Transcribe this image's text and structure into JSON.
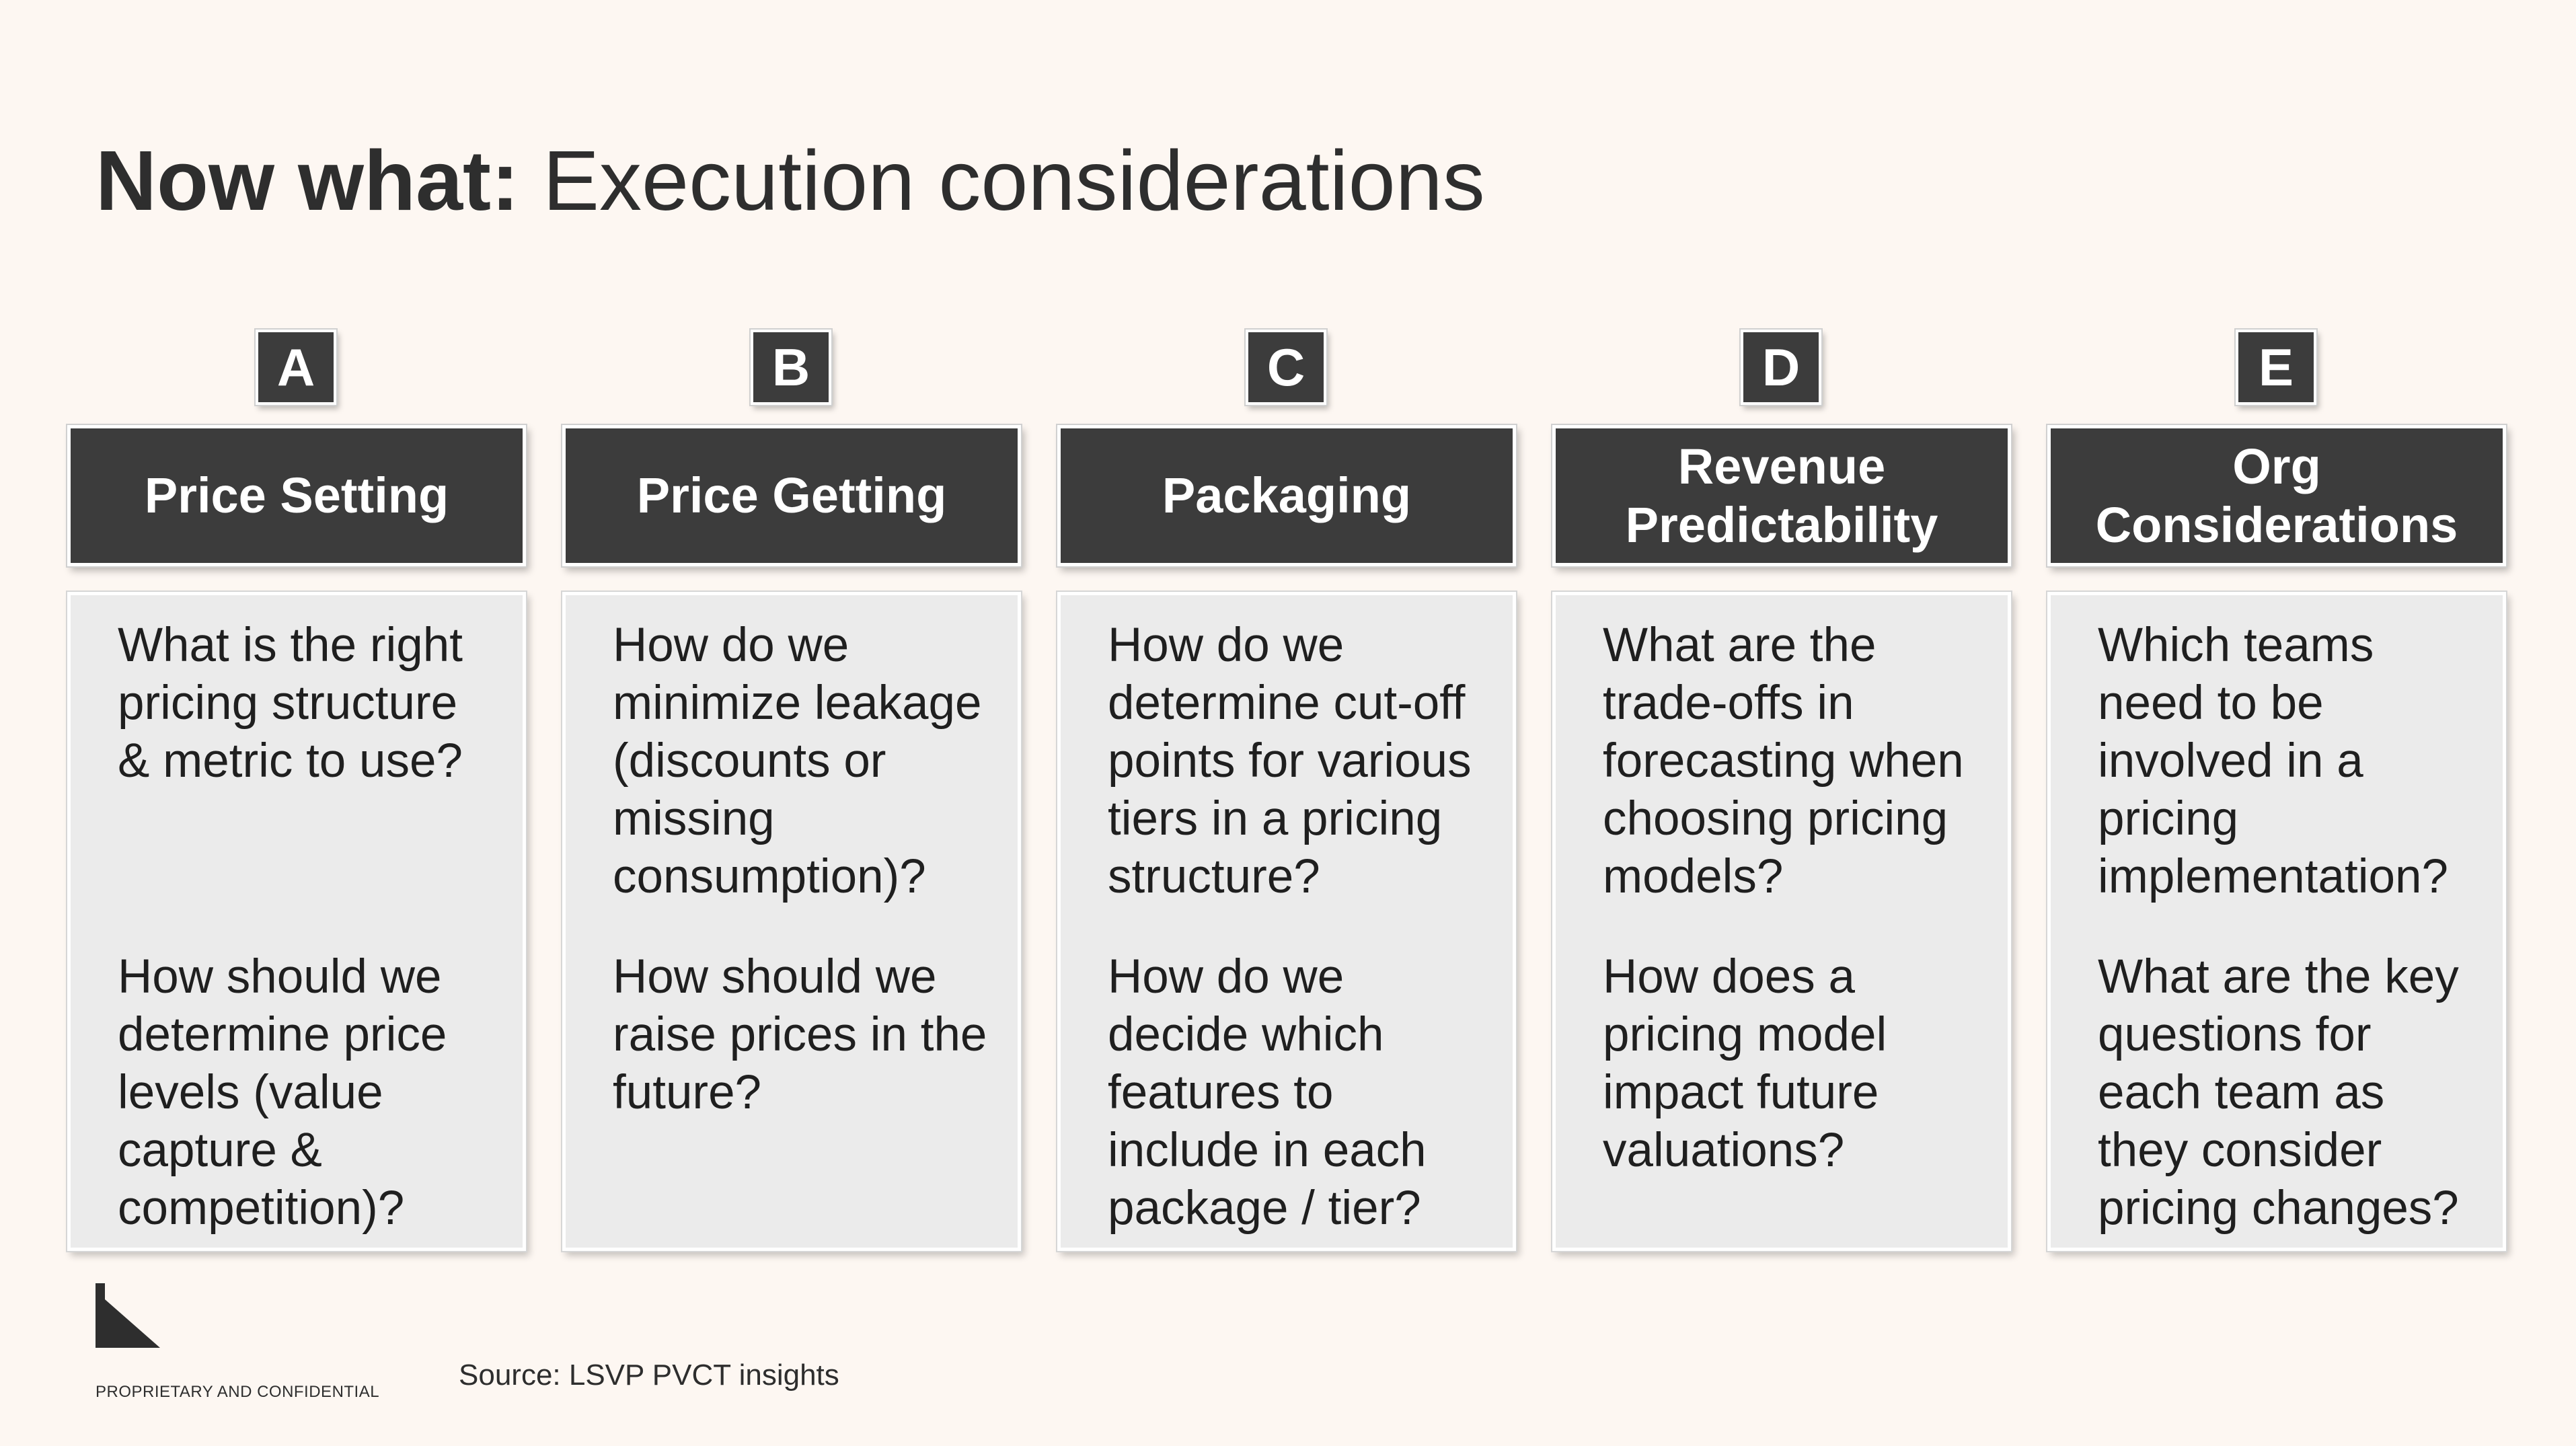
{
  "title": {
    "bold_part": "Now what:",
    "regular_part": "Execution considerations"
  },
  "columns": [
    {
      "letter": "A",
      "header": "Price Setting",
      "questions": [
        "What is the right pricing structure & metric to use?",
        "How should we determine price levels (value capture & competition)?"
      ]
    },
    {
      "letter": "B",
      "header": "Price Getting",
      "questions": [
        "How do we minimize leakage (discounts or missing consumption)?",
        "How should we raise prices in the future?"
      ]
    },
    {
      "letter": "C",
      "header": "Packaging",
      "questions": [
        "How do we determine cut-off points for various tiers in a pricing structure?",
        "How do we decide which features to include in each package / tier?"
      ]
    },
    {
      "letter": "D",
      "header": "Revenue Predictability",
      "questions": [
        "What are the trade-offs in forecasting when choosing pricing models?",
        "How does a pricing model impact future valuations?"
      ]
    },
    {
      "letter": "E",
      "header": "Org Considerations",
      "questions": [
        "Which teams need to be involved in a pricing implementation?",
        "What are the key questions for each team as they consider pricing changes?"
      ]
    }
  ],
  "footer": {
    "confidential": "PROPRIETARY AND CONFIDENTIAL",
    "source": "Source: LSVP PVCT insights",
    "logo_icon": "lightspeed-logo-icon"
  },
  "colors": {
    "background": "#fdf7f2",
    "header_fill": "#3c3c3c",
    "body_fill": "#ebebeb",
    "text": "#2e2e2e"
  }
}
